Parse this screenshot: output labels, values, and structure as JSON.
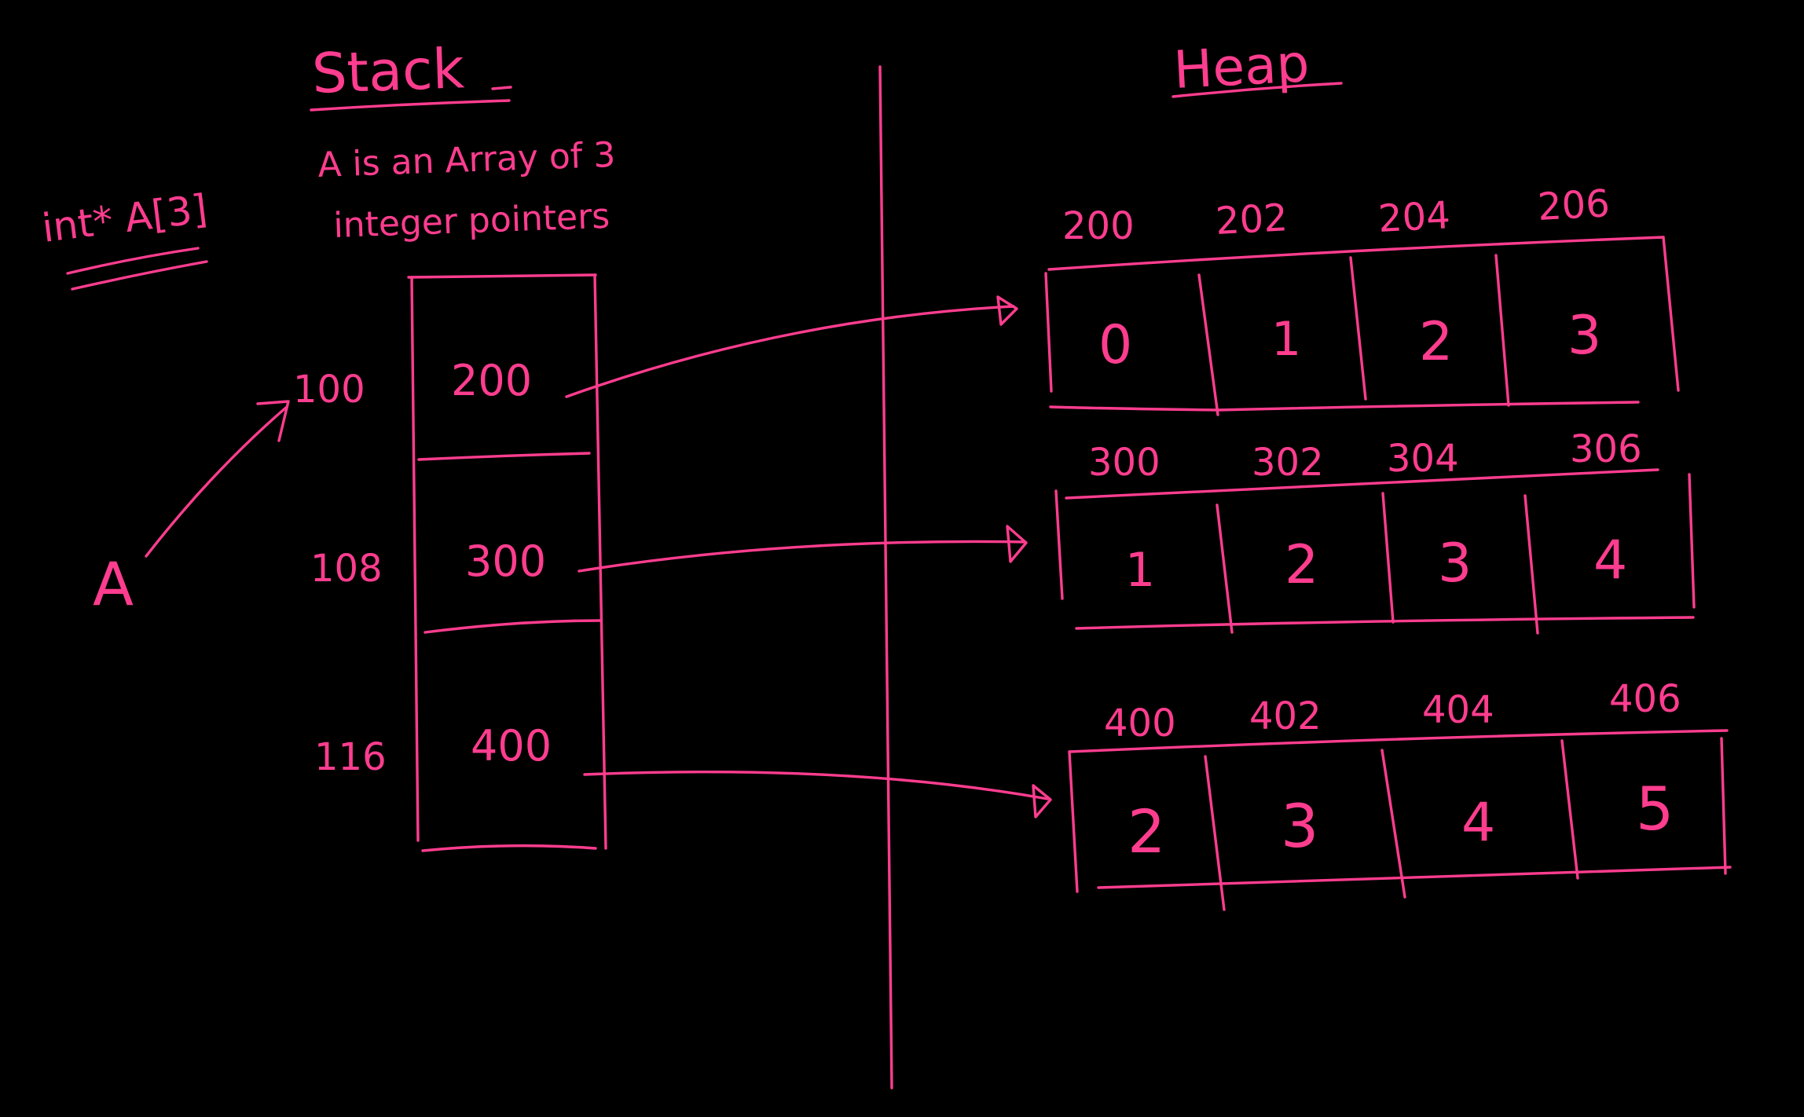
{
  "colors": {
    "background": "#000000",
    "ink": "#ff3d8f"
  },
  "headings": {
    "stack": "Stack",
    "heap": "Heap"
  },
  "declaration": "int* A[3]",
  "note": {
    "line1": "A is an Array of 3",
    "line2": "integer pointers"
  },
  "variable_name": "A",
  "stack": {
    "addresses": [
      "100",
      "108",
      "116"
    ],
    "values": [
      "200",
      "300",
      "400"
    ]
  },
  "heap": {
    "rows": [
      {
        "addresses": [
          "200",
          "202",
          "204",
          "206"
        ],
        "values": [
          "0",
          "1",
          "2",
          "3"
        ]
      },
      {
        "addresses": [
          "300",
          "302",
          "304",
          "306"
        ],
        "values": [
          "1",
          "2",
          "3",
          "4"
        ]
      },
      {
        "addresses": [
          "400",
          "402",
          "404",
          "406"
        ],
        "values": [
          "2",
          "3",
          "4",
          "5"
        ]
      }
    ]
  }
}
